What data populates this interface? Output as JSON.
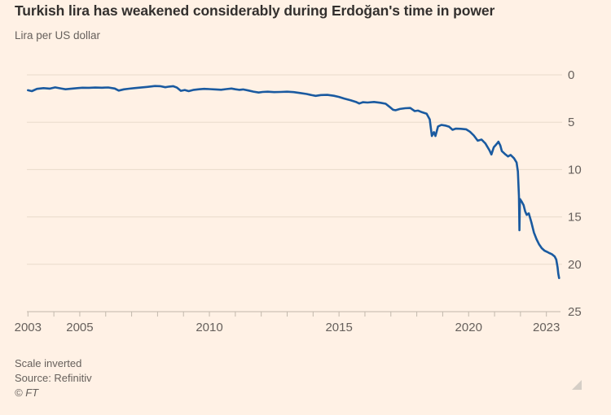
{
  "header": {
    "title": "Turkish lira has weakened considerably during Erdoğan's time in power",
    "subtitle": "Lira per US dollar"
  },
  "footer": {
    "note": "Scale inverted",
    "source": "Source: Refinitiv",
    "copyright": "© FT"
  },
  "colors": {
    "background": "#FFF1E5",
    "title_text": "#33302E",
    "muted_text": "#66605C",
    "gridline": "#E8DACB",
    "axis": "#C2B8AC",
    "series_line": "#1A5AA0",
    "corner_icon": "#D5CEC6"
  },
  "chart_data": {
    "type": "line",
    "title": "Turkish lira has weakened considerably during Erdoğan's time in power",
    "subtitle": "Lira per US dollar",
    "ylabel": "Lira per US dollar",
    "scale_inverted": true,
    "grid": "horizontal",
    "ylim": [
      0,
      25
    ],
    "yticks": [
      0,
      5,
      10,
      15,
      20,
      25
    ],
    "ytick_side": "right",
    "xlim": [
      2003,
      2023.55
    ],
    "xticks_minor_years": [
      2003,
      2004,
      2005,
      2006,
      2007,
      2008,
      2009,
      2010,
      2011,
      2012,
      2013,
      2014,
      2015,
      2016,
      2017,
      2018,
      2019,
      2020,
      2021,
      2022,
      2023
    ],
    "xtick_labeled_years": [
      2003,
      2005,
      2010,
      2015,
      2020,
      2023
    ],
    "series": [
      {
        "name": "Lira per US dollar",
        "points": [
          [
            2003.0,
            1.62
          ],
          [
            2003.15,
            1.72
          ],
          [
            2003.35,
            1.48
          ],
          [
            2003.6,
            1.4
          ],
          [
            2003.85,
            1.45
          ],
          [
            2004.05,
            1.32
          ],
          [
            2004.3,
            1.45
          ],
          [
            2004.45,
            1.52
          ],
          [
            2004.65,
            1.47
          ],
          [
            2004.9,
            1.4
          ],
          [
            2005.1,
            1.36
          ],
          [
            2005.35,
            1.37
          ],
          [
            2005.6,
            1.34
          ],
          [
            2005.85,
            1.36
          ],
          [
            2006.1,
            1.33
          ],
          [
            2006.35,
            1.44
          ],
          [
            2006.5,
            1.66
          ],
          [
            2006.7,
            1.53
          ],
          [
            2006.9,
            1.46
          ],
          [
            2007.1,
            1.4
          ],
          [
            2007.35,
            1.34
          ],
          [
            2007.6,
            1.27
          ],
          [
            2007.9,
            1.18
          ],
          [
            2008.1,
            1.19
          ],
          [
            2008.3,
            1.31
          ],
          [
            2008.45,
            1.24
          ],
          [
            2008.6,
            1.19
          ],
          [
            2008.75,
            1.35
          ],
          [
            2008.9,
            1.68
          ],
          [
            2009.05,
            1.6
          ],
          [
            2009.2,
            1.72
          ],
          [
            2009.4,
            1.58
          ],
          [
            2009.6,
            1.52
          ],
          [
            2009.8,
            1.48
          ],
          [
            2010.0,
            1.5
          ],
          [
            2010.25,
            1.54
          ],
          [
            2010.45,
            1.57
          ],
          [
            2010.65,
            1.5
          ],
          [
            2010.85,
            1.44
          ],
          [
            2011.0,
            1.52
          ],
          [
            2011.15,
            1.58
          ],
          [
            2011.3,
            1.54
          ],
          [
            2011.5,
            1.65
          ],
          [
            2011.7,
            1.77
          ],
          [
            2011.9,
            1.86
          ],
          [
            2012.05,
            1.8
          ],
          [
            2012.25,
            1.78
          ],
          [
            2012.5,
            1.82
          ],
          [
            2012.75,
            1.8
          ],
          [
            2013.0,
            1.78
          ],
          [
            2013.25,
            1.82
          ],
          [
            2013.5,
            1.92
          ],
          [
            2013.75,
            2.02
          ],
          [
            2013.95,
            2.14
          ],
          [
            2014.1,
            2.22
          ],
          [
            2014.3,
            2.13
          ],
          [
            2014.55,
            2.11
          ],
          [
            2014.8,
            2.21
          ],
          [
            2015.0,
            2.33
          ],
          [
            2015.2,
            2.5
          ],
          [
            2015.45,
            2.68
          ],
          [
            2015.65,
            2.85
          ],
          [
            2015.78,
            3.02
          ],
          [
            2015.92,
            2.89
          ],
          [
            2016.1,
            2.92
          ],
          [
            2016.35,
            2.86
          ],
          [
            2016.6,
            2.95
          ],
          [
            2016.8,
            3.05
          ],
          [
            2016.95,
            3.38
          ],
          [
            2017.08,
            3.68
          ],
          [
            2017.18,
            3.74
          ],
          [
            2017.35,
            3.6
          ],
          [
            2017.55,
            3.52
          ],
          [
            2017.75,
            3.5
          ],
          [
            2017.92,
            3.82
          ],
          [
            2018.05,
            3.77
          ],
          [
            2018.2,
            3.94
          ],
          [
            2018.38,
            4.1
          ],
          [
            2018.5,
            4.7
          ],
          [
            2018.58,
            6.45
          ],
          [
            2018.66,
            6.05
          ],
          [
            2018.72,
            6.45
          ],
          [
            2018.82,
            5.45
          ],
          [
            2018.95,
            5.28
          ],
          [
            2019.1,
            5.35
          ],
          [
            2019.25,
            5.48
          ],
          [
            2019.38,
            5.8
          ],
          [
            2019.5,
            5.68
          ],
          [
            2019.7,
            5.7
          ],
          [
            2019.9,
            5.75
          ],
          [
            2020.05,
            6.0
          ],
          [
            2020.2,
            6.4
          ],
          [
            2020.35,
            6.95
          ],
          [
            2020.5,
            6.83
          ],
          [
            2020.65,
            7.25
          ],
          [
            2020.8,
            7.95
          ],
          [
            2020.88,
            8.4
          ],
          [
            2020.97,
            7.65
          ],
          [
            2021.08,
            7.3
          ],
          [
            2021.15,
            7.05
          ],
          [
            2021.22,
            7.45
          ],
          [
            2021.28,
            8.05
          ],
          [
            2021.4,
            8.35
          ],
          [
            2021.52,
            8.62
          ],
          [
            2021.62,
            8.45
          ],
          [
            2021.75,
            8.8
          ],
          [
            2021.85,
            9.25
          ],
          [
            2021.9,
            10.2
          ],
          [
            2021.94,
            12.8
          ],
          [
            2021.96,
            16.4
          ],
          [
            2021.98,
            13.1
          ],
          [
            2022.05,
            13.4
          ],
          [
            2022.12,
            13.75
          ],
          [
            2022.18,
            14.4
          ],
          [
            2022.24,
            14.78
          ],
          [
            2022.32,
            14.62
          ],
          [
            2022.42,
            15.55
          ],
          [
            2022.52,
            16.65
          ],
          [
            2022.62,
            17.35
          ],
          [
            2022.72,
            17.9
          ],
          [
            2022.82,
            18.3
          ],
          [
            2022.92,
            18.55
          ],
          [
            2023.02,
            18.68
          ],
          [
            2023.12,
            18.82
          ],
          [
            2023.22,
            18.95
          ],
          [
            2023.32,
            19.18
          ],
          [
            2023.38,
            19.5
          ],
          [
            2023.43,
            20.3
          ],
          [
            2023.46,
            21.0
          ],
          [
            2023.49,
            21.45
          ]
        ]
      }
    ],
    "annotations": [
      "Scale inverted",
      "Source: Refinitiv",
      "© FT"
    ]
  }
}
